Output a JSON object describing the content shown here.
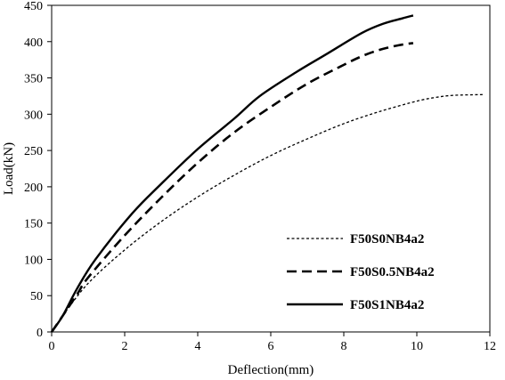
{
  "chart_data": {
    "type": "line",
    "xlabel": "Deflection(mm)",
    "ylabel": "Load(kN)",
    "xlim": [
      0,
      12
    ],
    "ylim": [
      0,
      450
    ],
    "xticks": [
      0,
      2,
      4,
      6,
      8,
      10,
      12
    ],
    "yticks": [
      0,
      50,
      100,
      150,
      200,
      250,
      300,
      350,
      400,
      450
    ],
    "grid": false,
    "legend_position": "bottom-right",
    "series": [
      {
        "name": "F50S0NB4a2",
        "style": "dotted",
        "color": "#000000",
        "x": [
          0,
          0.3,
          1,
          2,
          3,
          4,
          5,
          6,
          7,
          8,
          9,
          10,
          10.5,
          11,
          11.8
        ],
        "y": [
          0,
          22,
          67,
          113,
          152,
          186,
          216,
          243,
          266,
          287,
          304,
          318,
          323,
          326,
          327
        ]
      },
      {
        "name": "F50S0.5NB4a2",
        "style": "dashed",
        "color": "#000000",
        "x": [
          0,
          0.3,
          0.7,
          1,
          2,
          3,
          4,
          5,
          6,
          7,
          8,
          8.5,
          9,
          9.5,
          9.9
        ],
        "y": [
          0,
          22,
          52,
          75,
          133,
          185,
          233,
          275,
          310,
          342,
          368,
          380,
          389,
          395,
          398
        ]
      },
      {
        "name": "F50S1NB4a2",
        "style": "solid",
        "color": "#000000",
        "x": [
          0,
          0.3,
          0.7,
          1.2,
          2.2,
          3,
          4,
          5,
          5.7,
          6.7,
          7.5,
          8.5,
          9.1,
          9.6,
          9.9
        ],
        "y": [
          0,
          22,
          60,
          100,
          163,
          204,
          252,
          294,
          325,
          358,
          382,
          412,
          425,
          432,
          436
        ]
      }
    ]
  }
}
